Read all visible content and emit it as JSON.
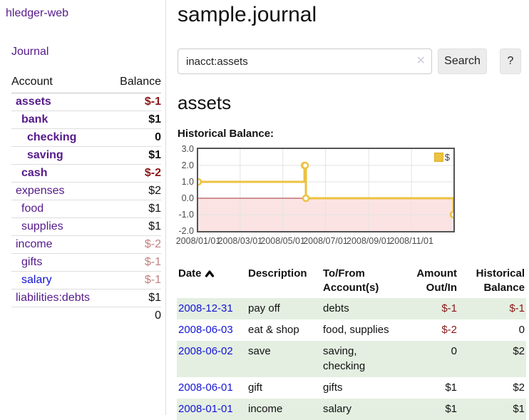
{
  "sidebar": {
    "brand": "hledger-web",
    "journal_link": "Journal",
    "accounts_table": {
      "headers": {
        "account": "Account",
        "balance": "Balance"
      },
      "rows": [
        {
          "name": "assets",
          "indent": 1,
          "bold": true,
          "balance": "$-1",
          "negative": "strong",
          "link_style": "purple"
        },
        {
          "name": "bank",
          "indent": 2,
          "bold": true,
          "balance": "$1",
          "negative": null,
          "link_style": "purple"
        },
        {
          "name": "checking",
          "indent": 3,
          "bold": true,
          "balance": "0",
          "negative": null,
          "link_style": "purple"
        },
        {
          "name": "saving",
          "indent": 3,
          "bold": true,
          "balance": "$1",
          "negative": null,
          "link_style": "purple"
        },
        {
          "name": "cash",
          "indent": 2,
          "bold": true,
          "balance": "$-2",
          "negative": "strong",
          "link_style": "purple"
        },
        {
          "name": "expenses",
          "indent": 1,
          "bold": false,
          "balance": "$2",
          "negative": null,
          "link_style": "purple"
        },
        {
          "name": "food",
          "indent": 2,
          "bold": false,
          "balance": "$1",
          "negative": null,
          "link_style": "purple"
        },
        {
          "name": "supplies",
          "indent": 2,
          "bold": false,
          "balance": "$1",
          "negative": null,
          "link_style": "purple"
        },
        {
          "name": "income",
          "indent": 1,
          "bold": false,
          "balance": "$-2",
          "negative": "muted",
          "link_style": "purple"
        },
        {
          "name": "gifts",
          "indent": 2,
          "bold": false,
          "balance": "$-1",
          "negative": "muted",
          "link_style": "purple"
        },
        {
          "name": "salary",
          "indent": 2,
          "bold": false,
          "balance": "$-1",
          "negative": "muted",
          "link_style": "blue"
        },
        {
          "name": "liabilities:debts",
          "indent": 1,
          "bold": false,
          "balance": "$1",
          "negative": null,
          "link_style": "purple"
        }
      ],
      "total": "0"
    }
  },
  "main": {
    "title": "sample.journal",
    "search": {
      "value": "inacct:assets",
      "clear_icon": "✕",
      "search_button": "Search",
      "help_button": "?"
    },
    "account_heading": "assets",
    "chart_title": "Historical Balance:"
  },
  "chart_data": {
    "type": "line",
    "step": true,
    "title": "Historical Balance:",
    "series": [
      {
        "name": "$",
        "color": "#edc240",
        "points": [
          [
            "2008-01-01",
            1
          ],
          [
            "2008-06-01",
            2
          ],
          [
            "2008-06-02",
            2
          ],
          [
            "2008-06-03",
            0
          ],
          [
            "2008-12-31",
            -1
          ]
        ]
      }
    ],
    "x_range": [
      "2008-01-01",
      "2008-12-31"
    ],
    "ylim": [
      -2,
      3
    ],
    "y_ticks": [
      3.0,
      2.0,
      1.0,
      0.0,
      -1.0,
      -2.0
    ],
    "x_ticks": [
      {
        "label": "2008/01/01",
        "date": "2008-01-01"
      },
      {
        "label": "2008/03/01",
        "date": "2008-03-01"
      },
      {
        "label": "2008/05/01",
        "date": "2008-05-01"
      },
      {
        "label": "2008/07/01",
        "date": "2008-07-01"
      },
      {
        "label": "2008/09/01",
        "date": "2008-09-01"
      },
      {
        "label": "2008/11/01",
        "date": "2008-11-01"
      }
    ],
    "legend": {
      "label": "$",
      "position": "top-right"
    },
    "grid": true,
    "markings": {
      "below_zero_fill": "#fbe3e3",
      "zero_line_color": "#a03030"
    }
  },
  "register": {
    "headers": {
      "date": "Date",
      "description": "Description",
      "accounts": "To/From Account(s)",
      "amount": "Amount Out/In",
      "balance": "Historical Balance"
    },
    "rows": [
      {
        "date": "2008-12-31",
        "description": "pay off",
        "accounts": "debts",
        "amount": "$-1",
        "amount_negative": true,
        "balance": "$-1",
        "balance_negative": true
      },
      {
        "date": "2008-06-03",
        "description": "eat & shop",
        "accounts": "food, supplies",
        "amount": "$-2",
        "amount_negative": true,
        "balance": "0",
        "balance_negative": false
      },
      {
        "date": "2008-06-02",
        "description": "save",
        "accounts": "saving, checking",
        "amount": "0",
        "amount_negative": false,
        "balance": "$2",
        "balance_negative": false
      },
      {
        "date": "2008-06-01",
        "description": "gift",
        "accounts": "gifts",
        "amount": "$1",
        "amount_negative": false,
        "balance": "$2",
        "balance_negative": false
      },
      {
        "date": "2008-01-01",
        "description": "income",
        "accounts": "salary",
        "amount": "$1",
        "amount_negative": false,
        "balance": "$1",
        "balance_negative": false
      }
    ]
  }
}
